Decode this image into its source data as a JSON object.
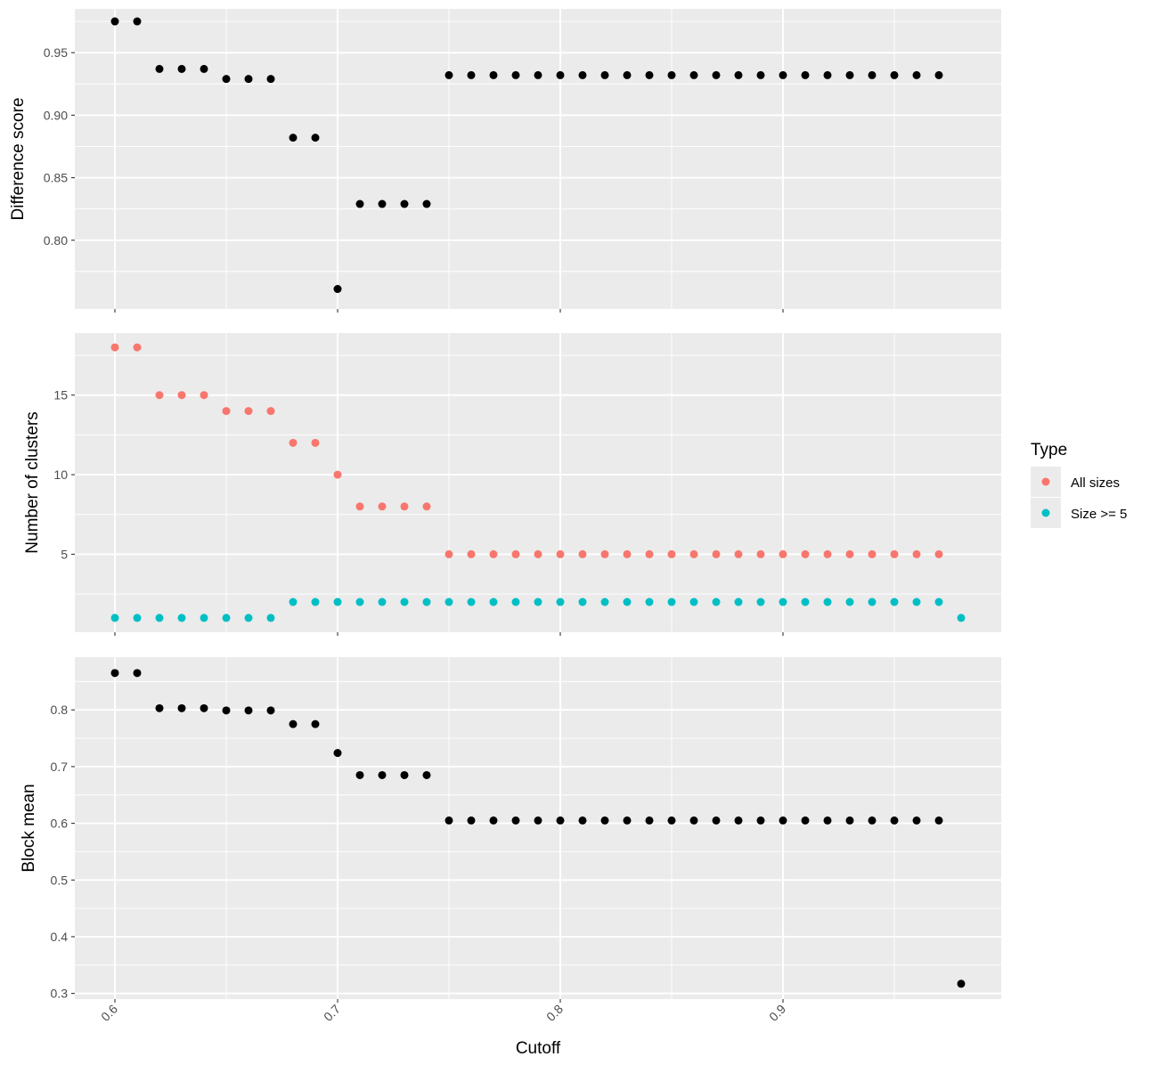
{
  "chart_data": [
    {
      "type": "scatter",
      "panel": "top",
      "ylabel": "Difference score",
      "ylim": [
        0.745,
        0.985
      ],
      "yticks": [
        0.8,
        0.85,
        0.9,
        0.95
      ],
      "ytick_labels": [
        "0.80",
        "0.85",
        "0.90",
        "0.95"
      ],
      "x": [
        0.6,
        0.61,
        0.62,
        0.63,
        0.64,
        0.65,
        0.66,
        0.67,
        0.68,
        0.69,
        0.7,
        0.71,
        0.72,
        0.73,
        0.74,
        0.75,
        0.76,
        0.77,
        0.78,
        0.79,
        0.8,
        0.81,
        0.82,
        0.83,
        0.84,
        0.85,
        0.86,
        0.87,
        0.88,
        0.89,
        0.9,
        0.91,
        0.92,
        0.93,
        0.94,
        0.95,
        0.96,
        0.97
      ],
      "series": [
        {
          "color": "#000000",
          "values": [
            0.975,
            0.975,
            0.937,
            0.937,
            0.937,
            0.929,
            0.929,
            0.929,
            0.882,
            0.882,
            0.761,
            0.829,
            0.829,
            0.829,
            0.829,
            0.932,
            0.932,
            0.932,
            0.932,
            0.932,
            0.932,
            0.932,
            0.932,
            0.932,
            0.932,
            0.932,
            0.932,
            0.932,
            0.932,
            0.932,
            0.932,
            0.932,
            0.932,
            0.932,
            0.932,
            0.932,
            0.932,
            0.932
          ]
        }
      ]
    },
    {
      "type": "scatter",
      "panel": "middle",
      "ylabel": "Number of clusters",
      "ylim": [
        0.1,
        18.9
      ],
      "yticks": [
        5,
        10,
        15
      ],
      "ytick_labels": [
        "5",
        "10",
        "15"
      ],
      "x": [
        0.6,
        0.61,
        0.62,
        0.63,
        0.64,
        0.65,
        0.66,
        0.67,
        0.68,
        0.69,
        0.7,
        0.71,
        0.72,
        0.73,
        0.74,
        0.75,
        0.76,
        0.77,
        0.78,
        0.79,
        0.8,
        0.81,
        0.82,
        0.83,
        0.84,
        0.85,
        0.86,
        0.87,
        0.88,
        0.89,
        0.9,
        0.91,
        0.92,
        0.93,
        0.94,
        0.95,
        0.96,
        0.97,
        0.98
      ],
      "series": [
        {
          "name": "All sizes",
          "color": "#F8766D",
          "values": [
            18,
            18,
            15,
            15,
            15,
            14,
            14,
            14,
            12,
            12,
            10,
            8,
            8,
            8,
            8,
            5,
            5,
            5,
            5,
            5,
            5,
            5,
            5,
            5,
            5,
            5,
            5,
            5,
            5,
            5,
            5,
            5,
            5,
            5,
            5,
            5,
            5,
            5,
            null
          ]
        },
        {
          "name": "Size >= 5",
          "color": "#00BFC4",
          "values": [
            1,
            1,
            1,
            1,
            1,
            1,
            1,
            1,
            2,
            2,
            2,
            2,
            2,
            2,
            2,
            2,
            2,
            2,
            2,
            2,
            2,
            2,
            2,
            2,
            2,
            2,
            2,
            2,
            2,
            2,
            2,
            2,
            2,
            2,
            2,
            2,
            2,
            2,
            1
          ]
        }
      ],
      "legend": {
        "title": "Type",
        "placement": "right"
      }
    },
    {
      "type": "scatter",
      "panel": "bottom",
      "ylabel": "Block mean",
      "xlabel": "Cutoff",
      "ylim": [
        0.29,
        0.893
      ],
      "yticks": [
        0.3,
        0.4,
        0.5,
        0.6,
        0.7,
        0.8
      ],
      "ytick_labels": [
        "0.3",
        "0.4",
        "0.5",
        "0.6",
        "0.7",
        "0.8"
      ],
      "x": [
        0.6,
        0.61,
        0.62,
        0.63,
        0.64,
        0.65,
        0.66,
        0.67,
        0.68,
        0.69,
        0.7,
        0.71,
        0.72,
        0.73,
        0.74,
        0.75,
        0.76,
        0.77,
        0.78,
        0.79,
        0.8,
        0.81,
        0.82,
        0.83,
        0.84,
        0.85,
        0.86,
        0.87,
        0.88,
        0.89,
        0.9,
        0.91,
        0.92,
        0.93,
        0.94,
        0.95,
        0.96,
        0.97,
        0.98
      ],
      "series": [
        {
          "color": "#000000",
          "values": [
            0.865,
            0.865,
            0.803,
            0.803,
            0.803,
            0.799,
            0.799,
            0.799,
            0.775,
            0.775,
            0.724,
            0.685,
            0.685,
            0.685,
            0.685,
            0.605,
            0.605,
            0.605,
            0.605,
            0.605,
            0.605,
            0.605,
            0.605,
            0.605,
            0.605,
            0.605,
            0.605,
            0.605,
            0.605,
            0.605,
            0.605,
            0.605,
            0.605,
            0.605,
            0.605,
            0.605,
            0.605,
            0.605,
            0.317
          ]
        }
      ]
    }
  ],
  "shared_x": {
    "xlim": [
      0.582,
      0.998
    ],
    "xticks": [
      0.6,
      0.7,
      0.8,
      0.9
    ],
    "xtick_labels": [
      "0.6",
      "0.7",
      "0.8",
      "0.9"
    ]
  },
  "theme": {
    "panel_bg": "#EBEBEB",
    "grid_major": "#FFFFFF",
    "axis_text": "#4D4D4D",
    "title_text": "#000000"
  }
}
